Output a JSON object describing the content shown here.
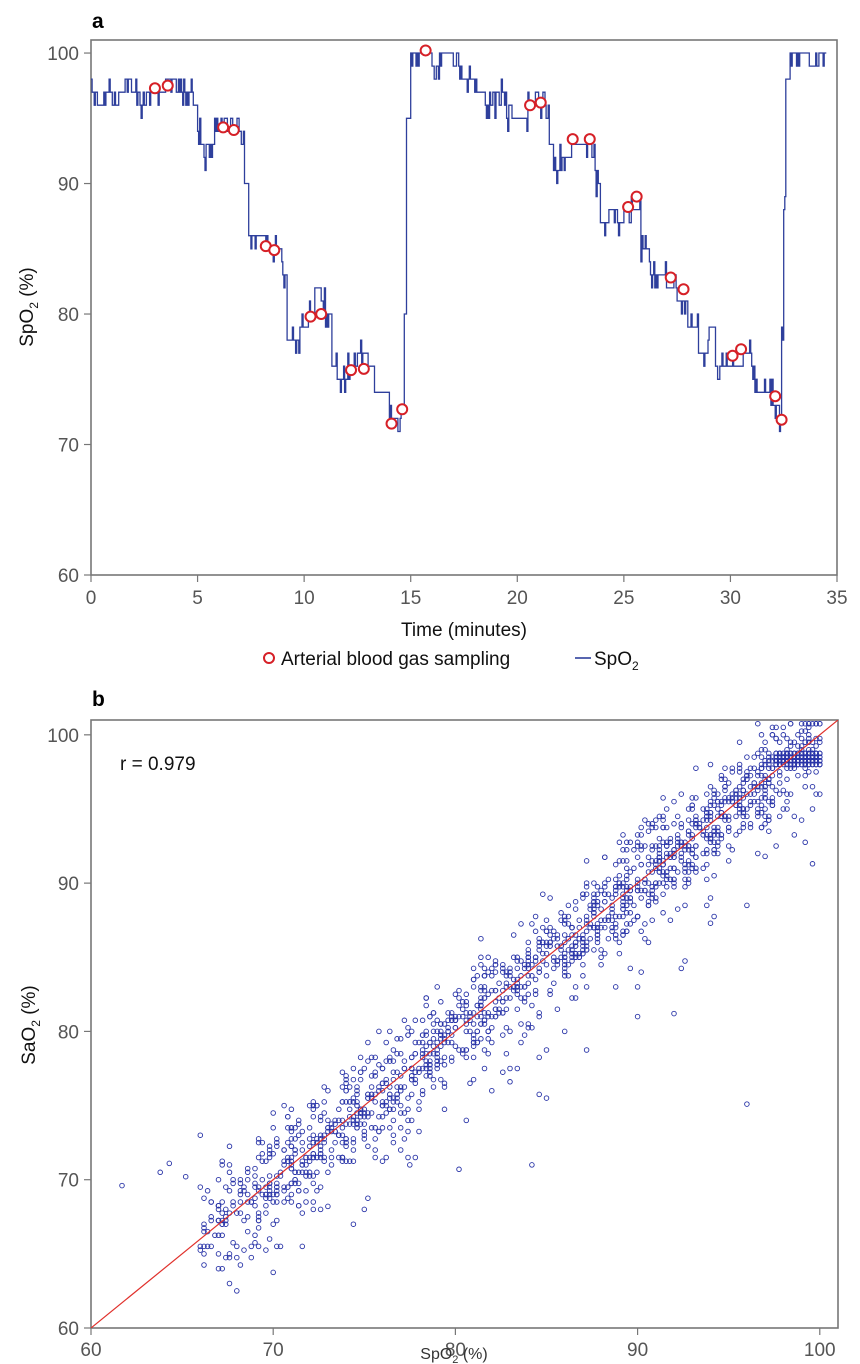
{
  "panels": {
    "a": {
      "letter": "a"
    },
    "b": {
      "letter": "b"
    }
  },
  "legend": {
    "abg_label": "Arterial blood gas sampling",
    "spo2_label_main": "SpO",
    "spo2_label_sub": "2"
  },
  "colors": {
    "spo2_line": "#2e3f9c",
    "abg_marker": "#d62027",
    "scatter_marker": "#2a35a8",
    "identity_line": "#e0302b",
    "axis": "#777777"
  },
  "chart_data": [
    {
      "type": "line",
      "panel": "a",
      "xlabel": "Time (minutes)",
      "ylabel_main": "SpO",
      "ylabel_sub": "2",
      "ylabel_suffix": " (%)",
      "xlim": [
        0,
        35
      ],
      "ylim": [
        60,
        101
      ],
      "x_ticks": [
        0,
        5,
        10,
        15,
        20,
        25,
        30,
        35
      ],
      "y_ticks": [
        60,
        70,
        80,
        90,
        100
      ],
      "grid": false,
      "legend_position": "bottom",
      "series": [
        {
          "name": "SpO2",
          "kind": "step-line",
          "points": [
            [
              0,
              97
            ],
            [
              0.3,
              96
            ],
            [
              0.6,
              97
            ],
            [
              1.0,
              96
            ],
            [
              1.3,
              97
            ],
            [
              1.6,
              98
            ],
            [
              1.9,
              97
            ],
            [
              2.3,
              96
            ],
            [
              2.6,
              97
            ],
            [
              3.0,
              97
            ],
            [
              3.5,
              98
            ],
            [
              4.0,
              97
            ],
            [
              4.5,
              97
            ],
            [
              4.8,
              96
            ],
            [
              5.0,
              94
            ],
            [
              5.2,
              92
            ],
            [
              5.4,
              93
            ],
            [
              5.8,
              94
            ],
            [
              6.2,
              95
            ],
            [
              6.6,
              94
            ],
            [
              7.0,
              93
            ],
            [
              7.2,
              90
            ],
            [
              7.4,
              86
            ],
            [
              8.0,
              86
            ],
            [
              8.3,
              85
            ],
            [
              8.6,
              85
            ],
            [
              9.0,
              83
            ],
            [
              9.2,
              78
            ],
            [
              9.6,
              78
            ],
            [
              9.8,
              79
            ],
            [
              10.2,
              80
            ],
            [
              10.5,
              81
            ],
            [
              11.0,
              80
            ],
            [
              11.3,
              76
            ],
            [
              11.6,
              75
            ],
            [
              12.0,
              76
            ],
            [
              12.3,
              76
            ],
            [
              12.6,
              77
            ],
            [
              13.0,
              76
            ],
            [
              13.3,
              74
            ],
            [
              13.6,
              74
            ],
            [
              14.0,
              72
            ],
            [
              14.3,
              72
            ],
            [
              14.6,
              73
            ],
            [
              14.7,
              80
            ],
            [
              14.8,
              95
            ],
            [
              15.0,
              100
            ],
            [
              15.5,
              100
            ],
            [
              16.0,
              99
            ],
            [
              16.5,
              100
            ],
            [
              17.0,
              99
            ],
            [
              17.5,
              98
            ],
            [
              18.0,
              97
            ],
            [
              18.5,
              96
            ],
            [
              19.0,
              97
            ],
            [
              19.5,
              95
            ],
            [
              20.0,
              95
            ],
            [
              20.5,
              96
            ],
            [
              21.0,
              96
            ],
            [
              21.3,
              95
            ],
            [
              21.5,
              93
            ],
            [
              21.7,
              91
            ],
            [
              22.0,
              92
            ],
            [
              22.5,
              93
            ],
            [
              23.0,
              93
            ],
            [
              23.5,
              92
            ],
            [
              23.7,
              90
            ],
            [
              23.9,
              87
            ],
            [
              24.3,
              88
            ],
            [
              24.7,
              87
            ],
            [
              25.0,
              88
            ],
            [
              25.5,
              88
            ],
            [
              25.8,
              85
            ],
            [
              26.2,
              83
            ],
            [
              26.6,
              83
            ],
            [
              27.0,
              82
            ],
            [
              27.5,
              81
            ],
            [
              28.0,
              79
            ],
            [
              28.5,
              77
            ],
            [
              29.0,
              79
            ],
            [
              29.3,
              76
            ],
            [
              29.8,
              76
            ],
            [
              30.2,
              76
            ],
            [
              30.6,
              77
            ],
            [
              31.0,
              75
            ],
            [
              31.4,
              74
            ],
            [
              31.8,
              74
            ],
            [
              32.0,
              73
            ],
            [
              32.3,
              71
            ],
            [
              32.4,
              78
            ],
            [
              32.5,
              88
            ],
            [
              32.6,
              98
            ],
            [
              32.8,
              100
            ],
            [
              33.3,
              100
            ],
            [
              33.8,
              99
            ],
            [
              34.2,
              100
            ],
            [
              34.5,
              98
            ]
          ]
        },
        {
          "name": "Arterial blood gas sampling",
          "kind": "markers",
          "points": [
            [
              3.0,
              97.3
            ],
            [
              3.6,
              97.5
            ],
            [
              6.2,
              94.3
            ],
            [
              6.7,
              94.1
            ],
            [
              8.2,
              85.2
            ],
            [
              8.6,
              84.9
            ],
            [
              10.3,
              79.8
            ],
            [
              10.8,
              80.0
            ],
            [
              12.2,
              75.7
            ],
            [
              12.8,
              75.8
            ],
            [
              14.1,
              71.6
            ],
            [
              14.6,
              72.7
            ],
            [
              15.7,
              100.2
            ],
            [
              20.6,
              96.0
            ],
            [
              21.1,
              96.2
            ],
            [
              22.6,
              93.4
            ],
            [
              23.4,
              93.4
            ],
            [
              25.2,
              88.2
            ],
            [
              25.6,
              89.0
            ],
            [
              27.2,
              82.8
            ],
            [
              27.8,
              81.9
            ],
            [
              30.1,
              76.8
            ],
            [
              30.5,
              77.3
            ],
            [
              32.1,
              73.7
            ],
            [
              32.4,
              71.9
            ]
          ]
        }
      ]
    },
    {
      "type": "scatter",
      "panel": "b",
      "xlabel_main": "SpO",
      "xlabel_sub": "2",
      "xlabel_suffix": " (%)",
      "ylabel_main": "SaO",
      "ylabel_sub": "2",
      "ylabel_suffix": " (%)",
      "xlim": [
        60,
        101
      ],
      "ylim": [
        60,
        101
      ],
      "x_ticks": [
        60,
        70,
        80,
        90,
        100
      ],
      "y_ticks": [
        60,
        70,
        80,
        90,
        100
      ],
      "grid": false,
      "annotations": [
        {
          "text": "r = 0.979"
        }
      ],
      "identity_line": [
        [
          60,
          60
        ],
        [
          101,
          101
        ]
      ],
      "point_count_approx": 1800,
      "trend": {
        "slope": 1.0,
        "intercept": 0.0,
        "spread_sd": 1.7
      },
      "series": [
        {
          "name": "",
          "points": [
            [
              61.7,
              69.6
            ],
            [
              63.8,
              70.5
            ],
            [
              64.3,
              71.1
            ],
            [
              65.2,
              70.2
            ],
            [
              66.0,
              73.0
            ],
            [
              67.0,
              68.0
            ],
            [
              73.0,
              68.2
            ],
            [
              75.0,
              68.0
            ],
            [
              77.5,
              71.0
            ],
            [
              80.2,
              70.7
            ],
            [
              84.2,
              71.0
            ],
            [
              96.0,
              75.1
            ],
            [
              85.0,
              75.5
            ],
            [
              83.0,
              76.6
            ],
            [
              90.0,
              81.0
            ],
            [
              92.0,
              81.2
            ],
            [
              94.0,
              87.3
            ],
            [
              97.0,
              91.8
            ],
            [
              99.6,
              91.3
            ],
            [
              79.0,
              83.0
            ],
            [
              82.0,
              76.0
            ],
            [
              86.0,
              80.0
            ]
          ]
        }
      ]
    }
  ]
}
